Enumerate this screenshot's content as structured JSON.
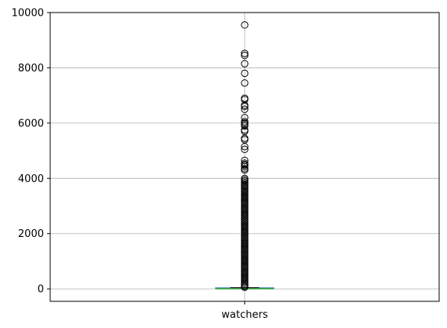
{
  "chart_data": {
    "type": "box",
    "title": "",
    "xlabel": "",
    "ylabel": "",
    "categories": [
      "watchers"
    ],
    "ylim": [
      -450,
      10000
    ],
    "yticks": [
      0,
      2000,
      4000,
      6000,
      8000,
      10000
    ],
    "yticklabels": [
      "0",
      "2000",
      "4000",
      "6000",
      "8000",
      "10000"
    ],
    "grid": true,
    "box": {
      "category": "watchers",
      "q1": 3,
      "median": 8,
      "q3": 20,
      "whisker_low": 0,
      "whisker_high": 45
    },
    "outliers": [
      9550,
      8520,
      8450,
      8150,
      7800,
      7450,
      6900,
      6850,
      6650,
      6600,
      6500,
      6200,
      6050,
      6000,
      5950,
      5900,
      5750,
      5700,
      5450,
      5400,
      5150,
      5050,
      4650,
      4550,
      4500,
      4480,
      4420,
      4350,
      4300,
      4000,
      3950,
      3900,
      3850,
      3800,
      3750,
      3700,
      3650,
      3600,
      3550,
      3500,
      3450,
      3400,
      3350,
      3300,
      3250,
      3200,
      3150,
      3100,
      3050,
      3000,
      2950,
      2900,
      2850,
      2800,
      2750,
      2700,
      2650,
      2600,
      2550,
      2500,
      2450,
      2400,
      2350,
      2300,
      2250,
      2200,
      2150,
      2100,
      2050,
      2000,
      1950,
      1900,
      1850,
      1800,
      1750,
      1700,
      1650,
      1600,
      1550,
      1500,
      1450,
      1400,
      1350,
      1300,
      1250,
      1200,
      1150,
      1100,
      1050,
      1000,
      950,
      900,
      850,
      800,
      750,
      700,
      650,
      600,
      550,
      500,
      450,
      400,
      350,
      300,
      250,
      200,
      150,
      100,
      60
    ],
    "colors": {
      "box": "#1f77b4",
      "median": "#2ca02c",
      "grid": "#b0b0b0",
      "outlier_edge": "#000000"
    }
  }
}
